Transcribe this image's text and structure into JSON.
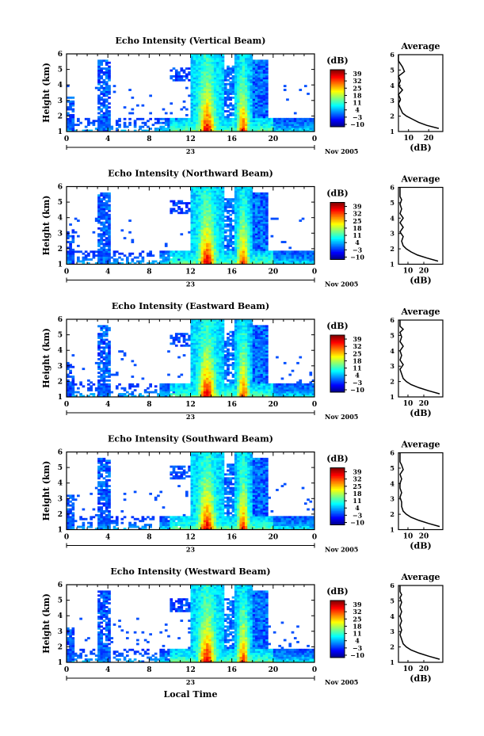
{
  "figure": {
    "xlabel": "Local Time",
    "date_label": "Nov 2005",
    "day_label": "23",
    "colorbar_label": "(dB)",
    "colorbar_ticks": [
      "39",
      "32",
      "25",
      "18",
      "11",
      "4",
      "−3",
      "−10"
    ],
    "avg_title": "Average",
    "avg_xlabel": "(dB)"
  },
  "chart_data": [
    {
      "type": "heatmap",
      "title": "Echo Intensity (Vertical Beam)",
      "ylabel": "Height (km)",
      "xlim": [
        0,
        24
      ],
      "ylim": [
        1,
        6
      ],
      "xticks": [
        "0",
        "4",
        "8",
        "12",
        "16",
        "20",
        "0"
      ],
      "yticks": [
        "1",
        "2",
        "3",
        "4",
        "5",
        "6"
      ],
      "clim": [
        -10,
        39
      ],
      "average_profile": {
        "xlim": [
          5,
          27
        ],
        "xticks": [
          "10",
          "20"
        ],
        "height_km": [
          1.2,
          1.4,
          1.6,
          1.8,
          2.0,
          2.2,
          2.5,
          2.8,
          3.1,
          3.4,
          3.7,
          4.0,
          4.3,
          4.6,
          4.9,
          5.2,
          5.4,
          5.6,
          5.8,
          6.0
        ],
        "value_db": [
          25,
          19,
          15,
          12,
          9,
          7,
          6,
          5,
          6,
          5,
          7,
          5,
          6,
          5,
          8,
          7,
          6,
          5,
          5,
          5
        ]
      }
    },
    {
      "type": "heatmap",
      "title": "Echo Intensity (Northward Beam)",
      "ylabel": "Height (km)",
      "xlim": [
        0,
        24
      ],
      "ylim": [
        1,
        6
      ],
      "xticks": [
        "0",
        "4",
        "8",
        "12",
        "16",
        "20",
        "0"
      ],
      "yticks": [
        "1",
        "2",
        "3",
        "4",
        "5",
        "6"
      ],
      "clim": [
        -10,
        39
      ],
      "average_profile": {
        "xlim": [
          4,
          32
        ],
        "xticks": [
          "10",
          "20"
        ],
        "height_km": [
          1.2,
          1.4,
          1.6,
          1.8,
          2.0,
          2.2,
          2.5,
          2.8,
          3.1,
          3.4,
          3.7,
          4.0,
          4.3,
          4.6,
          4.9,
          5.2,
          5.4,
          5.6,
          5.8,
          6.0
        ],
        "value_db": [
          29,
          22,
          16,
          12,
          9,
          7,
          6,
          7,
          5,
          7,
          5,
          7,
          5,
          6,
          5,
          6,
          5,
          5,
          5,
          5
        ]
      }
    },
    {
      "type": "heatmap",
      "title": "Echo Intensity (Eastward Beam)",
      "ylabel": "Height (km)",
      "xlim": [
        0,
        24
      ],
      "ylim": [
        1,
        6
      ],
      "xticks": [
        "0",
        "4",
        "8",
        "12",
        "16",
        "20",
        "0"
      ],
      "yticks": [
        "1",
        "2",
        "3",
        "4",
        "5",
        "6"
      ],
      "clim": [
        -10,
        39
      ],
      "average_profile": {
        "xlim": [
          4,
          32
        ],
        "xticks": [
          "10",
          "20"
        ],
        "height_km": [
          1.2,
          1.4,
          1.6,
          1.8,
          2.0,
          2.2,
          2.5,
          2.8,
          3.1,
          3.4,
          3.7,
          4.0,
          4.3,
          4.6,
          4.9,
          5.2,
          5.4,
          5.6,
          5.8,
          6.0
        ],
        "value_db": [
          30,
          23,
          17,
          12,
          9,
          7,
          6,
          5,
          7,
          5,
          6,
          5,
          7,
          5,
          6,
          5,
          7,
          5,
          5,
          5
        ]
      }
    },
    {
      "type": "heatmap",
      "title": "Echo Intensity (Southward Beam)",
      "ylabel": "Height (km)",
      "xlim": [
        0,
        24
      ],
      "ylim": [
        1,
        6
      ],
      "xticks": [
        "0",
        "4",
        "8",
        "12",
        "16",
        "20",
        "0"
      ],
      "yticks": [
        "1",
        "2",
        "3",
        "4",
        "5",
        "6"
      ],
      "clim": [
        -10,
        39
      ],
      "average_profile": {
        "xlim": [
          4,
          32
        ],
        "xticks": [
          "10",
          "20"
        ],
        "height_km": [
          1.2,
          1.4,
          1.6,
          1.8,
          2.0,
          2.2,
          2.5,
          2.8,
          3.1,
          3.4,
          3.7,
          4.0,
          4.3,
          4.6,
          4.9,
          5.2,
          5.4,
          5.6,
          5.8,
          6.0
        ],
        "value_db": [
          30,
          23,
          17,
          12,
          9,
          7,
          6,
          6,
          5,
          6,
          5,
          5,
          6,
          5,
          7,
          6,
          5,
          5,
          5,
          5
        ]
      }
    },
    {
      "type": "heatmap",
      "title": "Echo Intensity (Westward Beam)",
      "ylabel": "Height (km)",
      "xlim": [
        0,
        24
      ],
      "ylim": [
        1,
        6
      ],
      "xticks": [
        "0",
        "4",
        "8",
        "12",
        "16",
        "20",
        "0"
      ],
      "yticks": [
        "1",
        "2",
        "3",
        "4",
        "5",
        "6"
      ],
      "clim": [
        -10,
        39
      ],
      "average_profile": {
        "xlim": [
          4,
          32
        ],
        "xticks": [
          "10",
          "20"
        ],
        "height_km": [
          1.2,
          1.4,
          1.6,
          1.8,
          2.0,
          2.2,
          2.5,
          2.8,
          3.1,
          3.4,
          3.7,
          4.0,
          4.3,
          4.6,
          4.9,
          5.2,
          5.4,
          5.6,
          5.8,
          6.0
        ],
        "value_db": [
          30,
          23,
          17,
          12,
          9,
          7,
          6,
          5,
          6,
          5,
          6,
          5,
          6,
          5,
          6,
          5,
          6,
          5,
          5,
          5
        ]
      }
    }
  ]
}
